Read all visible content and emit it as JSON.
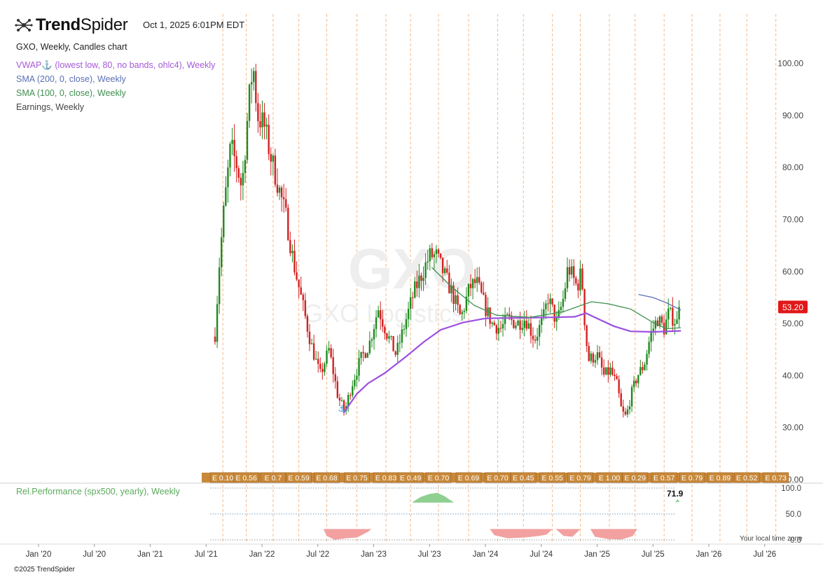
{
  "header": {
    "brand_bold": "Trend",
    "brand_light": "Spider",
    "timestamp": "Oct 1, 2025 6:01PM EDT"
  },
  "legend": {
    "title": "GXO, Weekly, Candles chart",
    "vwap": "VWAP⚓ (lowest low, 80, no bands, ohlc4), Weekly",
    "sma200": "SMA (200, 0, close), Weekly",
    "sma100": "SMA (100, 0, close), Weekly",
    "earnings": "Earnings, Weekly",
    "relperf": "Rel.Performance (spx500, yearly), Weekly"
  },
  "footer": "©2025 TrendSpider",
  "local_time_note": "Your local time zone",
  "colors": {
    "up": "#1e8a1e",
    "down": "#d42020",
    "vwap": "#9b50e0",
    "sma200": "#5b6fb5",
    "sma100": "#3f8f4f",
    "earn_fill": "#c8893a",
    "earn_dark": "#a86a25",
    "price_badge": "#e01818",
    "rel_pos": "#8fcf8f",
    "rel_neg": "#f2a0a0",
    "vline": "#f4b98a"
  },
  "watermark": {
    "ticker": "GXO",
    "name": "GXO Logistics"
  },
  "chart_data": [
    {
      "type": "candlestick",
      "symbol": "GXO",
      "interval": "Weekly",
      "x_ticks": [
        "Jan '20",
        "Jul '20",
        "Jan '21",
        "Jul '21",
        "Jan '22",
        "Jul '22",
        "Jan '23",
        "Jul '23",
        "Jan '24",
        "Jul '24",
        "Jan '25",
        "Jul '25",
        "Jan '26",
        "Jul '26"
      ],
      "x_range": [
        2019.75,
        2026.85
      ],
      "ylim": [
        20,
        107
      ],
      "y_ticks": [
        "100.00",
        "90.00",
        "80.00",
        "70.00",
        "60.00",
        "50.00",
        "40.00",
        "30.00",
        "20.00"
      ],
      "last_price": "53.20",
      "price_path": [
        [
          2021.58,
          48
        ],
        [
          2021.62,
          62
        ],
        [
          2021.66,
          72
        ],
        [
          2021.72,
          84
        ],
        [
          2021.78,
          80
        ],
        [
          2021.82,
          76
        ],
        [
          2021.88,
          92
        ],
        [
          2021.92,
          100
        ],
        [
          2021.96,
          90
        ],
        [
          2022.02,
          88
        ],
        [
          2022.08,
          82
        ],
        [
          2022.14,
          77
        ],
        [
          2022.22,
          70
        ],
        [
          2022.28,
          62
        ],
        [
          2022.36,
          54
        ],
        [
          2022.44,
          46
        ],
        [
          2022.52,
          40
        ],
        [
          2022.6,
          45
        ],
        [
          2022.68,
          36
        ],
        [
          2022.74,
          33
        ],
        [
          2022.8,
          38
        ],
        [
          2022.88,
          43
        ],
        [
          2022.96,
          46
        ],
        [
          2023.04,
          53
        ],
        [
          2023.12,
          48
        ],
        [
          2023.2,
          44
        ],
        [
          2023.28,
          50
        ],
        [
          2023.36,
          56
        ],
        [
          2023.44,
          60
        ],
        [
          2023.5,
          63
        ],
        [
          2023.56,
          63
        ],
        [
          2023.62,
          60
        ],
        [
          2023.7,
          56
        ],
        [
          2023.78,
          51
        ],
        [
          2023.86,
          57
        ],
        [
          2023.92,
          58
        ],
        [
          2024.0,
          53
        ],
        [
          2024.06,
          50
        ],
        [
          2024.14,
          49
        ],
        [
          2024.2,
          51
        ],
        [
          2024.28,
          50
        ],
        [
          2024.36,
          51
        ],
        [
          2024.44,
          47
        ],
        [
          2024.52,
          51
        ],
        [
          2024.56,
          55
        ],
        [
          2024.64,
          50
        ],
        [
          2024.7,
          55
        ],
        [
          2024.74,
          61
        ],
        [
          2024.82,
          57
        ],
        [
          2024.86,
          60
        ],
        [
          2024.89,
          50
        ],
        [
          2024.92,
          43
        ],
        [
          2025.0,
          44
        ],
        [
          2025.06,
          40
        ],
        [
          2025.12,
          41
        ],
        [
          2025.18,
          38
        ],
        [
          2025.22,
          33
        ],
        [
          2025.26,
          32
        ],
        [
          2025.3,
          36
        ],
        [
          2025.36,
          40
        ],
        [
          2025.42,
          42
        ],
        [
          2025.48,
          48
        ],
        [
          2025.54,
          51
        ],
        [
          2025.6,
          49
        ],
        [
          2025.64,
          52
        ],
        [
          2025.68,
          51
        ],
        [
          2025.72,
          50
        ],
        [
          2025.75,
          53.2
        ]
      ],
      "series": [
        {
          "name": "VWAP",
          "points": [
            [
              2022.73,
              32.8
            ],
            [
              2022.85,
              36.5
            ],
            [
              2022.95,
              38.5
            ],
            [
              2023.1,
              40.5
            ],
            [
              2023.28,
              43.5
            ],
            [
              2023.45,
              46.5
            ],
            [
              2023.6,
              48.8
            ],
            [
              2023.8,
              50.2
            ],
            [
              2024.0,
              51.0
            ],
            [
              2024.3,
              51.1
            ],
            [
              2024.6,
              51.2
            ],
            [
              2024.8,
              51.3
            ],
            [
              2024.9,
              52.0
            ],
            [
              2025.0,
              51.0
            ],
            [
              2025.15,
              49.5
            ],
            [
              2025.3,
              48.5
            ],
            [
              2025.5,
              48.4
            ],
            [
              2025.75,
              48.6
            ]
          ]
        },
        {
          "name": "SMA 200",
          "points": [
            [
              2025.37,
              55.6
            ],
            [
              2025.5,
              55.0
            ],
            [
              2025.62,
              54.0
            ],
            [
              2025.75,
              52.6
            ]
          ]
        },
        {
          "name": "SMA 100",
          "points": [
            [
              2023.52,
              60.8
            ],
            [
              2023.7,
              57.0
            ],
            [
              2023.9,
              53.5
            ],
            [
              2024.1,
              51.6
            ],
            [
              2024.4,
              51.2
            ],
            [
              2024.7,
              52.3
            ],
            [
              2024.95,
              54.2
            ],
            [
              2025.1,
              53.8
            ],
            [
              2025.3,
              52.8
            ],
            [
              2025.5,
              50.2
            ],
            [
              2025.62,
              49.0
            ],
            [
              2025.75,
              49.2
            ]
          ]
        }
      ],
      "earnings": [
        {
          "x": 2021.65,
          "label": "E 0.10"
        },
        {
          "x": 2021.86,
          "label": "E 0.56"
        },
        {
          "x": 2022.1,
          "label": "E 0.7"
        },
        {
          "x": 2022.33,
          "label": "E 0.59"
        },
        {
          "x": 2022.58,
          "label": "E 0.68"
        },
        {
          "x": 2022.85,
          "label": "E 0.75"
        },
        {
          "x": 2023.11,
          "label": "E 0.83"
        },
        {
          "x": 2023.33,
          "label": "E 0.49"
        },
        {
          "x": 2023.58,
          "label": "E 0.70"
        },
        {
          "x": 2023.85,
          "label": "E 0.69"
        },
        {
          "x": 2024.11,
          "label": "E 0.70"
        },
        {
          "x": 2024.34,
          "label": "E 0.45"
        },
        {
          "x": 2024.6,
          "label": "E 0.55"
        },
        {
          "x": 2024.85,
          "label": "E 0.79"
        },
        {
          "x": 2025.11,
          "label": "E 1.00"
        },
        {
          "x": 2025.34,
          "label": "E 0.29"
        },
        {
          "x": 2025.6,
          "label": "E 0.57"
        },
        {
          "x": 2025.85,
          "label": "E 0.79"
        },
        {
          "x": 2026.1,
          "label": "E 0.89"
        },
        {
          "x": 2026.34,
          "label": "E 0.52"
        },
        {
          "x": 2026.6,
          "label": "E 0.73"
        }
      ]
    },
    {
      "type": "area",
      "name": "Rel.Performance (spx500, yearly)",
      "ylim": [
        0,
        100
      ],
      "y_ticks": [
        "100.0",
        "50.0",
        "0.0"
      ],
      "last_value": "71.9",
      "positive_segments": [
        [
          [
            2023.35,
            5
          ],
          [
            2023.42,
            40
          ],
          [
            2023.5,
            62
          ],
          [
            2023.57,
            70
          ],
          [
            2023.63,
            48
          ],
          [
            2023.7,
            10
          ],
          [
            2023.72,
            0
          ]
        ],
        [
          [
            2025.7,
            0
          ],
          [
            2025.72,
            25
          ],
          [
            2025.74,
            8
          ]
        ]
      ],
      "negative_segments": [
        [
          [
            2022.55,
            0
          ],
          [
            2022.58,
            45
          ],
          [
            2022.65,
            70
          ],
          [
            2022.75,
            60
          ],
          [
            2022.85,
            55
          ],
          [
            2022.95,
            18
          ],
          [
            2022.98,
            0
          ]
        ],
        [
          [
            2024.04,
            0
          ],
          [
            2024.08,
            40
          ],
          [
            2024.2,
            60
          ],
          [
            2024.35,
            55
          ],
          [
            2024.48,
            45
          ],
          [
            2024.55,
            35
          ],
          [
            2024.6,
            0
          ]
        ],
        [
          [
            2024.63,
            0
          ],
          [
            2024.7,
            45
          ],
          [
            2024.78,
            50
          ],
          [
            2024.85,
            0
          ]
        ],
        [
          [
            2024.94,
            0
          ],
          [
            2024.98,
            50
          ],
          [
            2025.1,
            65
          ],
          [
            2025.22,
            68
          ],
          [
            2025.32,
            45
          ],
          [
            2025.36,
            0
          ]
        ]
      ]
    }
  ]
}
